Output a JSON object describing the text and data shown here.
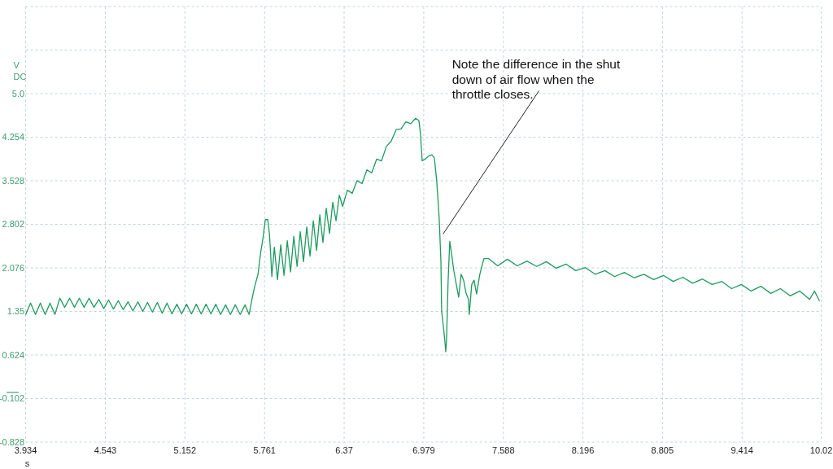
{
  "chart_data": {
    "type": "line",
    "xlabel": "s",
    "ylabel": "V DC",
    "color": "#1d9b5e",
    "grid": true,
    "xlim": [
      3.934,
      10.02
    ],
    "xticks": [
      3.934,
      4.543,
      5.152,
      5.761,
      6.37,
      6.979,
      7.588,
      8.196,
      8.805,
      9.414,
      10.02
    ],
    "ylim": [
      -0.828,
      6.432
    ],
    "yticks": [
      -0.828,
      -0.102,
      0.624,
      1.35,
      2.076,
      2.802,
      3.528,
      4.254,
      {
        "value": 4.98,
        "label": "5.0"
      },
      {
        "value": 5.706,
        "label": null
      },
      {
        "value": 6.432,
        "label": null
      }
    ],
    "annotations": [
      {
        "text": "Note the difference in the shut down of air flow when the throttle closes.",
        "x": 7.102,
        "y": 2.64
      }
    ],
    "x": [
      3.934,
      3.971,
      4.009,
      4.046,
      4.083,
      4.12,
      4.158,
      4.195,
      4.232,
      4.27,
      4.307,
      4.344,
      4.381,
      4.419,
      4.456,
      4.493,
      4.531,
      4.568,
      4.605,
      4.642,
      4.68,
      4.717,
      4.754,
      4.792,
      4.829,
      4.866,
      4.903,
      4.941,
      4.978,
      5.015,
      5.053,
      5.09,
      5.127,
      5.164,
      5.202,
      5.239,
      5.276,
      5.314,
      5.351,
      5.388,
      5.425,
      5.463,
      5.5,
      5.537,
      5.575,
      5.612,
      5.643,
      5.668,
      5.686,
      5.711,
      5.73,
      5.749,
      5.767,
      5.786,
      5.798,
      5.805,
      5.817,
      5.836,
      5.86,
      5.885,
      5.91,
      5.935,
      5.96,
      5.985,
      6.01,
      6.034,
      6.059,
      6.084,
      6.109,
      6.134,
      6.159,
      6.184,
      6.208,
      6.233,
      6.258,
      6.283,
      6.308,
      6.333,
      6.358,
      6.395,
      6.432,
      6.469,
      6.507,
      6.544,
      6.581,
      6.619,
      6.656,
      6.693,
      6.73,
      6.768,
      6.805,
      6.842,
      6.88,
      6.917,
      6.942,
      6.954,
      6.967,
      6.991,
      7.016,
      7.041,
      7.06,
      7.078,
      7.097,
      7.11,
      7.116,
      7.128,
      7.141,
      7.147,
      7.153,
      7.165,
      7.178,
      7.19,
      7.209,
      7.228,
      7.246,
      7.265,
      7.284,
      7.302,
      7.321,
      7.327,
      7.346,
      7.364,
      7.383,
      7.408,
      7.439,
      7.476,
      7.545,
      7.619,
      7.694,
      7.768,
      7.843,
      7.917,
      7.992,
      8.067,
      8.141,
      8.216,
      8.29,
      8.365,
      8.439,
      8.514,
      8.589,
      8.663,
      8.738,
      8.812,
      8.887,
      8.961,
      9.036,
      9.111,
      9.185,
      9.26,
      9.334,
      9.409,
      9.483,
      9.558,
      9.633,
      9.707,
      9.782,
      9.856,
      9.931,
      9.968,
      10.005
    ],
    "values": [
      1.3,
      1.49,
      1.3,
      1.49,
      1.3,
      1.49,
      1.3,
      1.57,
      1.42,
      1.57,
      1.42,
      1.57,
      1.42,
      1.57,
      1.42,
      1.55,
      1.4,
      1.54,
      1.39,
      1.53,
      1.38,
      1.51,
      1.36,
      1.51,
      1.35,
      1.5,
      1.34,
      1.5,
      1.32,
      1.49,
      1.31,
      1.47,
      1.31,
      1.47,
      1.31,
      1.47,
      1.31,
      1.47,
      1.31,
      1.47,
      1.3,
      1.46,
      1.3,
      1.46,
      1.3,
      1.46,
      1.3,
      1.59,
      1.77,
      1.97,
      2.31,
      2.57,
      2.88,
      2.88,
      2.65,
      2.41,
      1.93,
      2.42,
      1.88,
      2.46,
      1.95,
      2.53,
      2.01,
      2.6,
      2.1,
      2.68,
      2.18,
      2.76,
      2.27,
      2.86,
      2.37,
      2.96,
      2.5,
      3.07,
      2.65,
      3.17,
      2.86,
      3.29,
      3.1,
      3.37,
      3.32,
      3.53,
      3.48,
      3.71,
      3.66,
      3.89,
      3.86,
      4.1,
      4.19,
      4.38,
      4.39,
      4.51,
      4.48,
      4.57,
      4.53,
      4.31,
      3.86,
      3.89,
      3.94,
      3.96,
      3.91,
      3.53,
      2.91,
      2.2,
      1.35,
      1.12,
      0.85,
      0.68,
      0.85,
      1.84,
      2.52,
      2.34,
      2.03,
      1.8,
      1.59,
      1.97,
      1.87,
      1.66,
      1.55,
      1.3,
      1.8,
      1.87,
      1.64,
      1.97,
      2.23,
      2.23,
      2.11,
      2.22,
      2.11,
      2.19,
      2.1,
      2.18,
      2.07,
      2.14,
      2.03,
      2.08,
      1.97,
      2.03,
      1.93,
      2.0,
      1.91,
      1.97,
      1.88,
      1.95,
      1.85,
      1.92,
      1.82,
      1.89,
      1.8,
      1.85,
      1.73,
      1.8,
      1.69,
      1.77,
      1.65,
      1.73,
      1.61,
      1.69,
      1.55,
      1.69,
      1.53
    ]
  }
}
